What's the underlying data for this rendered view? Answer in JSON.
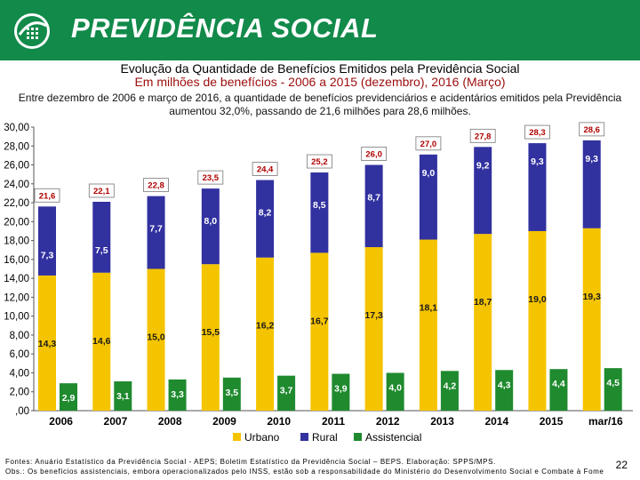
{
  "header": {
    "brand": "PREVIDÊNCIA SOCIAL"
  },
  "title": "Evolução da Quantidade de Benefícios Emitidos pela Previdência Social",
  "subtitle": "Em milhões de benefícios - 2006 a 2015 (dezembro), 2016 (Março)",
  "description": "Entre dezembro de 2006 e março de 2016, a quantidade de benefícios previdenciários e acidentários emitidos pela Previdência aumentou 32,0%, passando de 21,6 milhões para 28,6 milhões.",
  "chart_data": {
    "type": "bar",
    "categories": [
      "2006",
      "2007",
      "2008",
      "2009",
      "2010",
      "2011",
      "2012",
      "2013",
      "2014",
      "2015",
      "mar/16"
    ],
    "y_ticks": [
      "30,00",
      "28,00",
      "26,00",
      "24,00",
      "22,00",
      "20,00",
      "18,00",
      "16,00",
      "14,00",
      "12,00",
      "10,00",
      "8,00",
      "6,00",
      "4,00",
      "2,00",
      ",00"
    ],
    "ylim": [
      0,
      30
    ],
    "series": [
      {
        "name": "Urbano",
        "color": "#f5c400",
        "values": [
          14.3,
          14.6,
          15.0,
          15.5,
          16.2,
          16.7,
          17.3,
          18.1,
          18.7,
          19.0,
          19.3
        ],
        "labels": [
          "14,3",
          "14,6",
          "15,0",
          "15,5",
          "16,2",
          "16,7",
          "17,3",
          "18,1",
          "18,7",
          "19,0",
          "19,3"
        ]
      },
      {
        "name": "Rural",
        "color": "#3131a0",
        "values": [
          7.3,
          7.5,
          7.7,
          8.0,
          8.2,
          8.5,
          8.7,
          9.0,
          9.2,
          9.3,
          9.3
        ],
        "labels": [
          "7,3",
          "7,5",
          "7,7",
          "8,0",
          "8,2",
          "8,5",
          "8,7",
          "9,0",
          "9,2",
          "9,3",
          "9,3"
        ]
      },
      {
        "name": "Assistencial",
        "color": "#1f8a2e",
        "values": [
          2.9,
          3.1,
          3.3,
          3.5,
          3.7,
          3.9,
          4.0,
          4.2,
          4.3,
          4.4,
          4.5
        ],
        "labels": [
          "2,9",
          "3,1",
          "3,3",
          "3,5",
          "3,7",
          "3,9",
          "4,0",
          "4,2",
          "4,3",
          "4,4",
          "4,5"
        ]
      }
    ],
    "totals": [
      21.6,
      22.1,
      22.8,
      23.5,
      24.4,
      25.2,
      26.0,
      27.0,
      27.8,
      28.3,
      28.6
    ],
    "total_labels": [
      "21,6",
      "22,1",
      "22,8",
      "23,5",
      "24,4",
      "25,2",
      "26,0",
      "27,0",
      "27,8",
      "28,3",
      "28,6"
    ],
    "legend": [
      "Urbano",
      "Rural",
      "Assistencial"
    ],
    "legend_position": "bottom"
  },
  "footer": {
    "line1": "Fontes: Anuário Estatístico da Previdência Social - AEPS; Boletim Estatístico da Previdência Social – BEPS. Elaboração: SPPS/MPS.",
    "line2": "Obs.: Os benefícios assistenciais, embora operacionalizados pelo INSS, estão sob a responsabilidade do Ministério do Desenvolvimento Social e Combate à Fome"
  },
  "page_number": "22"
}
